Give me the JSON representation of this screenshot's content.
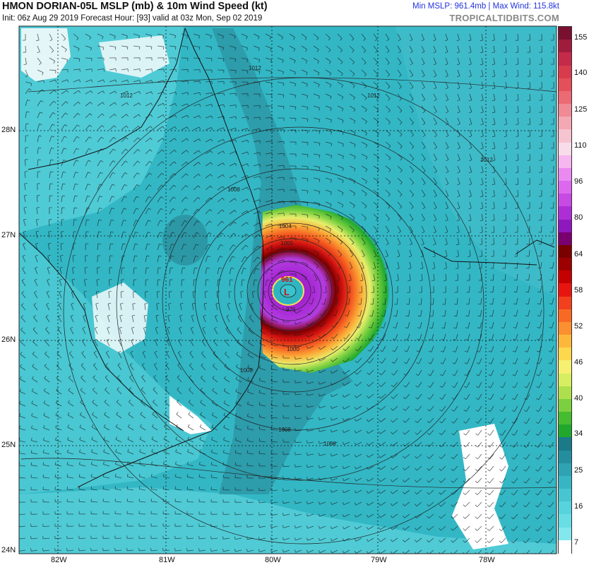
{
  "header": {
    "title": "HMON DORIAN-05L MSLP (mb) & 10m Wind Speed (kt)",
    "subtitle": "Init: 06z Aug 29 2019   Forecast Hour: [93]   valid at 03z Mon, Sep 02 2019",
    "stats": "Min MSLP: 961.4mb | Max Wind: 115.8kt",
    "brand": "TROPICALTIDBITS.COM"
  },
  "map": {
    "lat_labels": [
      "28N",
      "27N",
      "26N",
      "25N",
      "24N"
    ],
    "lon_labels": [
      "82W",
      "81W",
      "80W",
      "79W",
      "78W"
    ],
    "storm": {
      "low_label": "L",
      "center_pressure": "961"
    },
    "contour_labels": [
      "1012",
      "1012",
      "1012",
      "1012",
      "1008",
      "1004",
      "1000",
      "1000",
      "976",
      "1008",
      "1008",
      "1008"
    ],
    "colors": {
      "ocean_base": "#2fb4c2",
      "land_light": "#5fd7dc",
      "gulf_stream": "#2a8a99",
      "contour": "#222222",
      "grid": "#111111"
    }
  },
  "colorbar": {
    "labels": [
      "155",
      "140",
      "125",
      "110",
      "96",
      "80",
      "64",
      "58",
      "52",
      "46",
      "40",
      "34",
      "25",
      "16",
      "7"
    ],
    "colors": [
      "#7a1030",
      "#a01c3c",
      "#c42a4a",
      "#d83c4c",
      "#e4505a",
      "#ec6a74",
      "#f08a94",
      "#f4a8b4",
      "#f6c4d0",
      "#f8dcea",
      "#f6b6f0",
      "#ea8af0",
      "#dc68ee",
      "#c84ae4",
      "#ae2ed6",
      "#8e18be",
      "#7a0070",
      "#7a0000",
      "#9c0000",
      "#c40000",
      "#e81410",
      "#f2401e",
      "#f86a24",
      "#fc9030",
      "#fdb83c",
      "#fdd84c",
      "#f6f070",
      "#d6ee60",
      "#aee04e",
      "#7cd040",
      "#46bc30",
      "#20a82c",
      "#1a7a88",
      "#238f9e",
      "#2ea3b3",
      "#38b5c4",
      "#47c5d1",
      "#56d3dc",
      "#68dde4",
      "#82e8ee",
      "#ffffff"
    ]
  }
}
